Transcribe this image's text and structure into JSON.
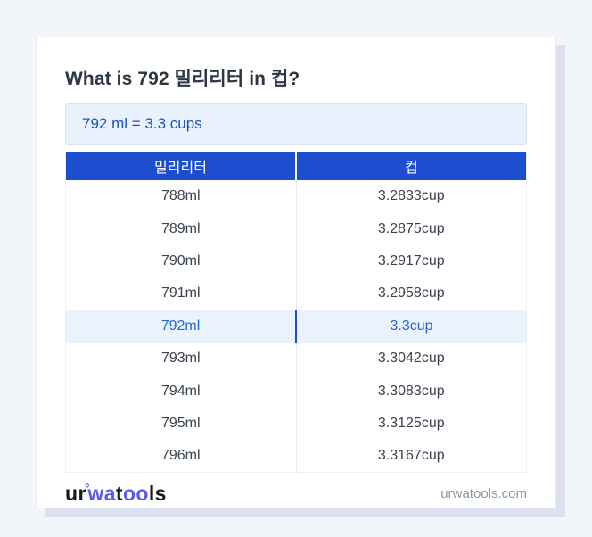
{
  "colors": {
    "page_background": "#f2f5f9",
    "card_background": "#ffffff",
    "card_shadow": "#dbe2ee",
    "table_header_blue": "#1e4ed0",
    "highlight_row_background": "#eaf3fd",
    "highlight_row_text": "#2565d0",
    "highlight_divider_blue": "#1b4fd1",
    "conversion_box_background": "#e9f1fc",
    "conversion_box_border": "#d7e4f4",
    "conversion_text_blue": "#1a53bb",
    "title_text": "#2d3644",
    "cell_text": "#39424e",
    "logo_accent": "#5a5bee",
    "domain_text": "#8d96a5"
  },
  "card": {
    "title": "What is 792 밀리리터 in 컵?",
    "conversion_result": "792 ml = 3.3 cups"
  },
  "table": {
    "headers": [
      "밀리리터",
      "컵"
    ],
    "rows": [
      {
        "ml": "788ml",
        "cup": "3.2833cup",
        "highlight": false
      },
      {
        "ml": "789ml",
        "cup": "3.2875cup",
        "highlight": false
      },
      {
        "ml": "790ml",
        "cup": "3.2917cup",
        "highlight": false
      },
      {
        "ml": "791ml",
        "cup": "3.2958cup",
        "highlight": false
      },
      {
        "ml": "792ml",
        "cup": "3.3cup",
        "highlight": true
      },
      {
        "ml": "793ml",
        "cup": "3.3042cup",
        "highlight": false
      },
      {
        "ml": "794ml",
        "cup": "3.3083cup",
        "highlight": false
      },
      {
        "ml": "795ml",
        "cup": "3.3125cup",
        "highlight": false
      },
      {
        "ml": "796ml",
        "cup": "3.3167cup",
        "highlight": false
      }
    ]
  },
  "footer": {
    "logo": {
      "segments": [
        {
          "text": "ur",
          "accent": false
        },
        {
          "text": "°",
          "accent": true
        },
        {
          "text": "wa",
          "accent": true
        },
        {
          "text": "t",
          "accent": false
        },
        {
          "text": "oo",
          "accent": true
        },
        {
          "text": "ls",
          "accent": false
        }
      ]
    },
    "site": "urwatools.com"
  }
}
